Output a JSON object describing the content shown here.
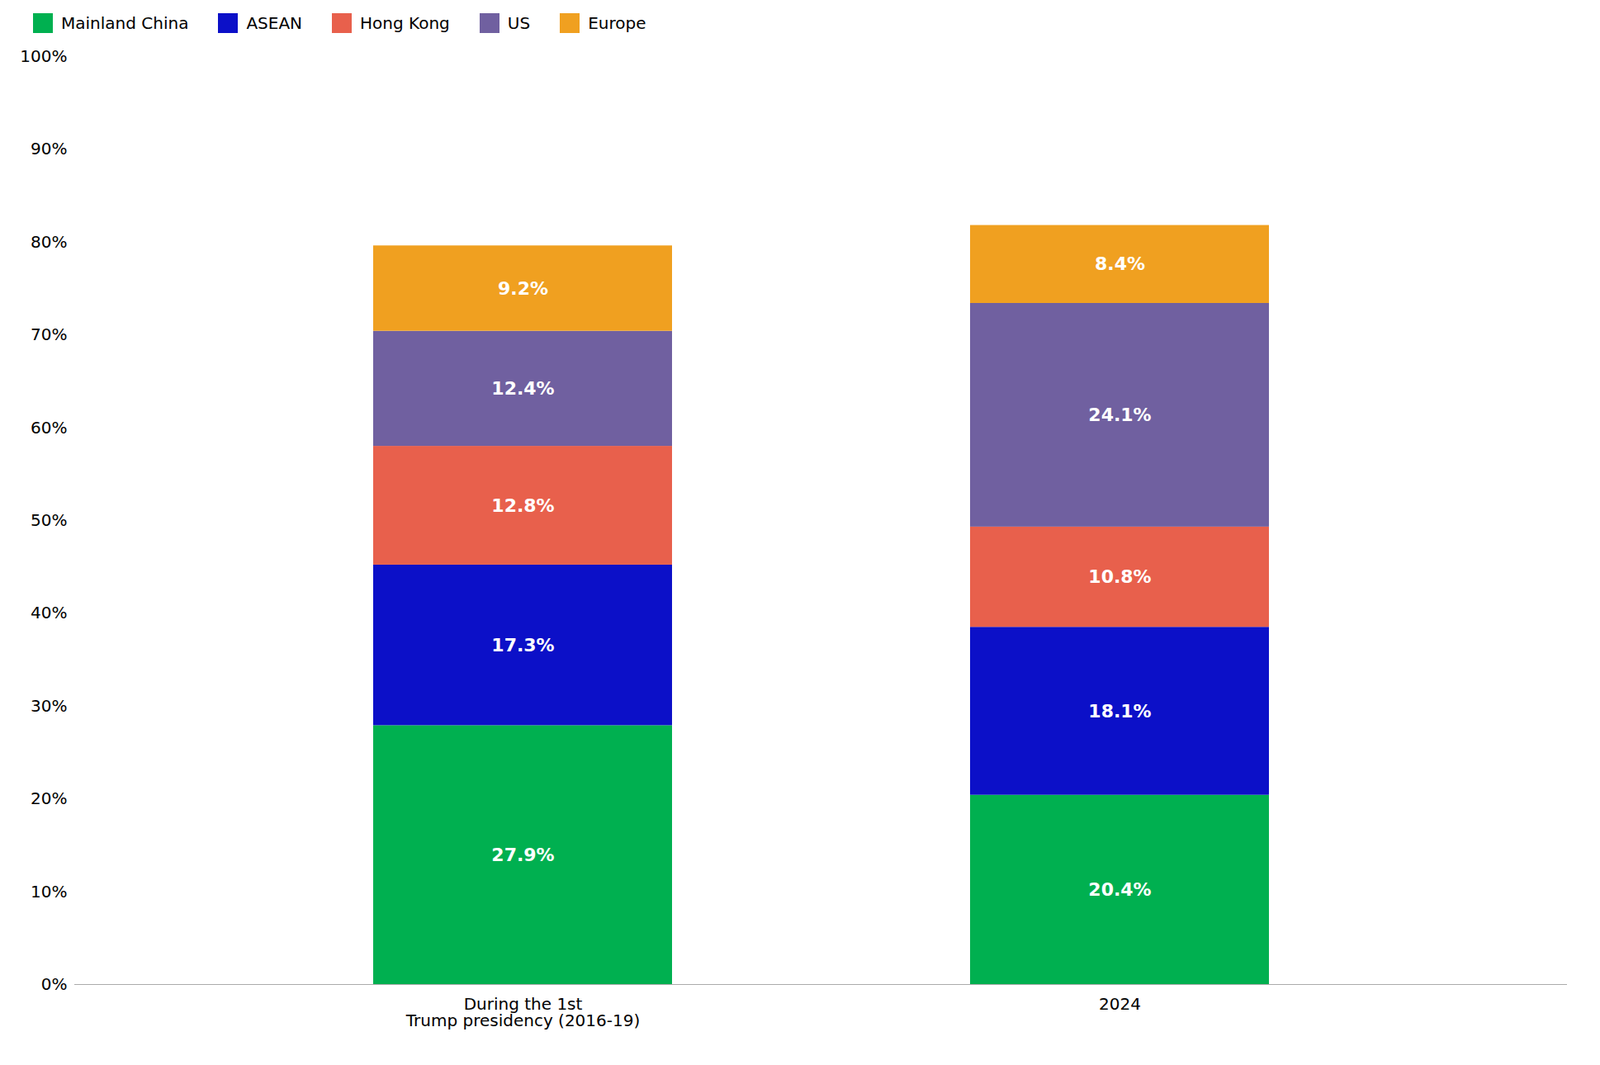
{
  "chart_data": {
    "type": "bar",
    "stacked": true,
    "data_labels": true,
    "legend": "upper left",
    "grid": false,
    "categories": [
      "During the 1st\nTrump presidency (2016-19)",
      "2024"
    ],
    "series": [
      {
        "name": "Mainland China",
        "color": "#00b050",
        "values": [
          27.9,
          20.4
        ],
        "value_labels": [
          "27.9%",
          "20.4%"
        ]
      },
      {
        "name": "ASEAN",
        "color": "#0c10c8",
        "values": [
          17.3,
          18.1
        ],
        "value_labels": [
          "17.3%",
          "18.1%"
        ]
      },
      {
        "name": "Hong Kong",
        "color": "#e8604c",
        "values": [
          12.8,
          10.8
        ],
        "value_labels": [
          "12.8%",
          "10.8%"
        ]
      },
      {
        "name": "US",
        "color": "#7060a0",
        "values": [
          12.4,
          24.1
        ],
        "value_labels": [
          "12.4%",
          "24.1%"
        ]
      },
      {
        "name": "Europe",
        "color": "#f0a020",
        "values": [
          9.2,
          8.4
        ],
        "value_labels": [
          "9.2%",
          "8.4%"
        ]
      }
    ],
    "ylim": [
      0,
      100
    ],
    "yticks": [
      {
        "value": 0,
        "label": "0%"
      },
      {
        "value": 10,
        "label": "10%"
      },
      {
        "value": 20,
        "label": "20%"
      },
      {
        "value": 30,
        "label": "30%"
      },
      {
        "value": 40,
        "label": "40%"
      },
      {
        "value": 50,
        "label": "50%"
      },
      {
        "value": 60,
        "label": "60%"
      },
      {
        "value": 70,
        "label": "70%"
      },
      {
        "value": 80,
        "label": "80%"
      },
      {
        "value": 90,
        "label": "90%"
      },
      {
        "value": 100,
        "label": "100%"
      }
    ]
  }
}
